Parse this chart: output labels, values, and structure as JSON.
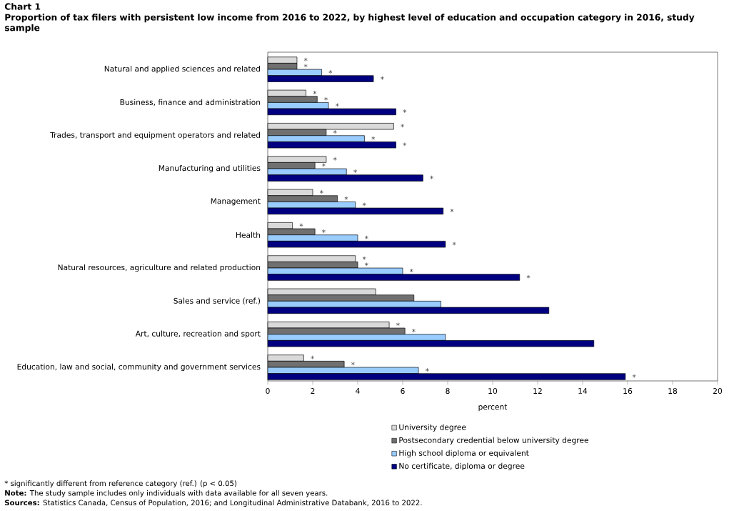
{
  "chart_data": {
    "type": "bar",
    "orientation": "horizontal",
    "title": "Chart 1",
    "subtitle": "Proportion of tax filers with persistent low income from 2016 to 2022, by highest level of education and occupation category in 2016, study sample",
    "xlabel": "percent",
    "categories": [
      "Natural and applied sciences and related",
      "Business, finance and administration",
      "Trades, transport and equipment operators and related",
      "Manufacturing and utilities",
      "Management",
      "Health",
      "Natural resources, agriculture and related production",
      "Sales and service (ref.)",
      "Art, culture, recreation and sport",
      "Education, law and social, community and government services"
    ],
    "series": [
      {
        "name": "University degree",
        "color": "#d9d9d9",
        "values": [
          1.3,
          1.7,
          5.6,
          2.6,
          2.0,
          1.1,
          3.9,
          4.8,
          5.4,
          1.6
        ],
        "value_labels": [
          "*",
          "*",
          "*",
          "*",
          "*",
          "*",
          "*",
          null,
          "*",
          "*"
        ]
      },
      {
        "name": "Postsecondary credential below university degree",
        "color": "#707070",
        "values": [
          1.3,
          2.2,
          2.6,
          2.1,
          3.1,
          2.1,
          4.0,
          6.5,
          6.1,
          3.4
        ],
        "value_labels": [
          "*",
          "*",
          "*",
          "*",
          "*",
          "*",
          "*",
          null,
          "*",
          "*"
        ]
      },
      {
        "name": "High school diploma or equivalent",
        "color": "#99ccff",
        "values": [
          2.4,
          2.7,
          4.3,
          3.5,
          3.9,
          4.0,
          6.0,
          7.7,
          7.9,
          6.7
        ],
        "value_labels": [
          "*",
          "*",
          "*",
          "*",
          "*",
          "*",
          "*",
          null,
          null,
          "*"
        ]
      },
      {
        "name": "No certificate, diploma or degree",
        "color": "#000080",
        "values": [
          4.7,
          5.7,
          5.7,
          6.9,
          7.8,
          7.9,
          11.2,
          12.5,
          14.5,
          15.9
        ],
        "value_labels": [
          "*",
          "*",
          "*",
          "*",
          "*",
          "*",
          "*",
          null,
          null,
          "*"
        ]
      }
    ],
    "xlim": [
      0,
      20
    ],
    "xticks": [
      0,
      2,
      4,
      6,
      8,
      10,
      12,
      14,
      16,
      18,
      20
    ],
    "grid": false,
    "legend": "bottom",
    "annotations": [
      "* significantly different from reference category (ref.) (p < 0.05)",
      "**Note:** The study sample includes only individuals with data available for all seven years.",
      "**Sources:** Statistics Canada, Census of Population, 2016; and Longitudinal Administrative Databank, 2016 to 2022."
    ]
  }
}
